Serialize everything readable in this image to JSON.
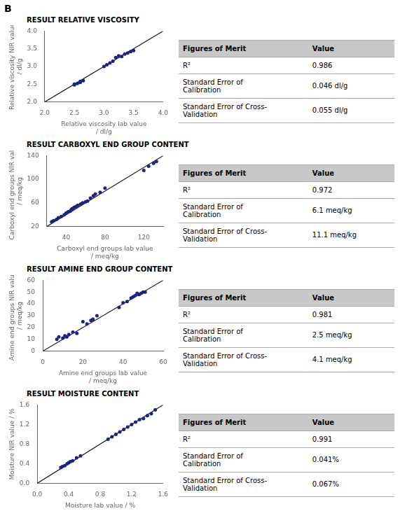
{
  "panel_label": "B",
  "chart_data": [
    {
      "type": "scatter",
      "title": "RESULT RELATIVE VISCOSITY",
      "x_label": "Relative viscosity lab value\n/ dl/g",
      "y_label": "Relative viscosity NIR value\n/ dl/g",
      "xlim": [
        2.0,
        4.0
      ],
      "ylim": [
        2.0,
        4.0
      ],
      "xticks": [
        {
          "value": 2.0,
          "label": "2.0"
        },
        2.5,
        {
          "value": 3.0,
          "label": "3.0"
        },
        3.5,
        {
          "value": 4.0,
          "label": "4.0"
        }
      ],
      "yticks": [
        {
          "value": 2.0,
          "label": "2.0"
        },
        2.5,
        {
          "value": 3.0,
          "label": "3.0"
        },
        3.5,
        {
          "value": 4.0,
          "label": "4.0"
        }
      ],
      "grid": false,
      "series": [
        {
          "type": "scatter",
          "color": "#1a237e",
          "x": [
            2.5,
            2.5,
            2.55,
            2.6,
            2.6,
            2.65,
            3.0,
            3.05,
            3.1,
            3.15,
            3.2,
            3.25,
            3.3,
            3.35,
            3.4,
            3.45,
            3.5
          ],
          "values": [
            2.5,
            2.48,
            2.52,
            2.58,
            2.55,
            2.6,
            3.0,
            3.05,
            3.1,
            3.15,
            3.25,
            3.3,
            3.28,
            3.35,
            3.38,
            3.42,
            3.45
          ]
        },
        {
          "type": "line",
          "color": "#1a1a1a",
          "x": [
            2.0,
            4.0
          ],
          "values": [
            2.0,
            4.0
          ]
        }
      ],
      "table": {
        "columns": [
          "Figures of Merit",
          "Value"
        ],
        "rows": [
          [
            "R²",
            "0.986"
          ],
          [
            "Standard Error of\nCalibration",
            "0.046 dl/g"
          ],
          [
            "Standard Error of Cross-\nValidation",
            "0.055 dl/g"
          ]
        ]
      }
    },
    {
      "type": "scatter",
      "title": "RESULT CARBOXYL END GROUP CONTENT",
      "x_label": "Carboxyl end groups lab value\n/ meq/kg",
      "y_label": "Carboxyl end groups NIR value\n/ meq/kg",
      "xlim": [
        20,
        140
      ],
      "ylim": [
        20,
        140
      ],
      "xticks": [
        40,
        80,
        120
      ],
      "yticks": [
        20,
        60,
        100,
        140
      ],
      "grid": false,
      "series": [
        {
          "type": "scatter",
          "color": "#1a237e",
          "x": [
            25,
            27,
            30,
            32,
            35,
            38,
            40,
            42,
            44,
            45,
            46,
            48,
            50,
            52,
            55,
            57,
            60,
            62,
            65,
            68,
            70,
            75,
            80,
            120,
            125,
            130,
            133
          ],
          "values": [
            28,
            30,
            32,
            35,
            37,
            40,
            43,
            45,
            46,
            48,
            50,
            52,
            54,
            56,
            58,
            60,
            62,
            63,
            68,
            72,
            75,
            78,
            85,
            115,
            122,
            127,
            130
          ]
        },
        {
          "type": "line",
          "color": "#1a1a1a",
          "x": [
            20,
            140
          ],
          "values": [
            20,
            140
          ]
        }
      ],
      "table": {
        "columns": [
          "Figures of Merit",
          "Value"
        ],
        "rows": [
          [
            "R²",
            "0.972"
          ],
          [
            "Standard Error of\nCalibration",
            "6.1 meq/kg"
          ],
          [
            "Standard Error of Cross-\nValidation",
            "11.1 meq/kg"
          ]
        ]
      }
    },
    {
      "type": "scatter",
      "title": "RESULT AMINE END GROUP CONTENT",
      "x_label": "Amine end groups lab value\n/ meq/kg",
      "y_label": "Amine end groups NIR value\n/ meq/kg",
      "xlim": [
        0,
        60
      ],
      "ylim": [
        0,
        60
      ],
      "xticks": [
        0,
        20,
        40,
        60
      ],
      "yticks": [
        0,
        10,
        20,
        30,
        40,
        50,
        60
      ],
      "grid": false,
      "series": [
        {
          "type": "scatter",
          "color": "#1a237e",
          "x": [
            7,
            8,
            10,
            11,
            12,
            13,
            15,
            17,
            20,
            22,
            24,
            25,
            27,
            38,
            40,
            42,
            44,
            45,
            46,
            47,
            48,
            49,
            50,
            51
          ],
          "values": [
            10,
            12,
            11,
            13,
            12,
            14,
            16,
            15,
            25,
            23,
            26,
            27,
            30,
            37,
            41,
            42,
            45,
            46,
            47,
            49,
            48,
            49,
            50,
            50
          ]
        },
        {
          "type": "line",
          "color": "#1a1a1a",
          "x": [
            0,
            60
          ],
          "values": [
            0,
            60
          ]
        }
      ],
      "table": {
        "columns": [
          "Figures of Merit",
          "Value"
        ],
        "rows": [
          [
            "R²",
            "0.981"
          ],
          [
            "Standard Error of\nCalibration",
            "2.5 meq/kg"
          ],
          [
            "Standard Error of Cross-\nValidation",
            "4.1 meq/kg"
          ]
        ]
      }
    },
    {
      "type": "scatter",
      "title": "RESULT MOISTURE CONTENT",
      "x_label": "Moisture lab value / %",
      "y_label": "Moisture NIR value / %",
      "xlim": [
        0.0,
        1.6
      ],
      "ylim": [
        0.0,
        1.6
      ],
      "xticks": [
        {
          "value": 0.0,
          "label": "0.0"
        },
        0.4,
        0.8,
        1.2,
        1.6
      ],
      "yticks": [
        {
          "value": 0.0,
          "label": "0.0"
        },
        0.4,
        0.8,
        1.2,
        1.6
      ],
      "grid": false,
      "series": [
        {
          "type": "scatter",
          "color": "#1a237e",
          "x": [
            0.3,
            0.32,
            0.35,
            0.38,
            0.4,
            0.42,
            0.45,
            0.5,
            0.55,
            0.9,
            0.95,
            1.0,
            1.05,
            1.1,
            1.15,
            1.2,
            1.25,
            1.3,
            1.35,
            1.4,
            1.45,
            1.5
          ],
          "values": [
            0.32,
            0.34,
            0.36,
            0.4,
            0.42,
            0.44,
            0.46,
            0.52,
            0.56,
            0.9,
            0.95,
            1.0,
            1.05,
            1.1,
            1.15,
            1.2,
            1.25,
            1.3,
            1.32,
            1.38,
            1.42,
            1.5
          ]
        },
        {
          "type": "line",
          "color": "#1a1a1a",
          "x": [
            0.0,
            1.6
          ],
          "values": [
            0.0,
            1.6
          ]
        }
      ],
      "table": {
        "columns": [
          "Figures of Merit",
          "Value"
        ],
        "rows": [
          [
            "R²",
            "0.991"
          ],
          [
            "Standard Error of\nCalibration",
            "0.041%"
          ],
          [
            "Standard Error of Cross-\nValidation",
            "0.067%"
          ]
        ]
      }
    }
  ]
}
